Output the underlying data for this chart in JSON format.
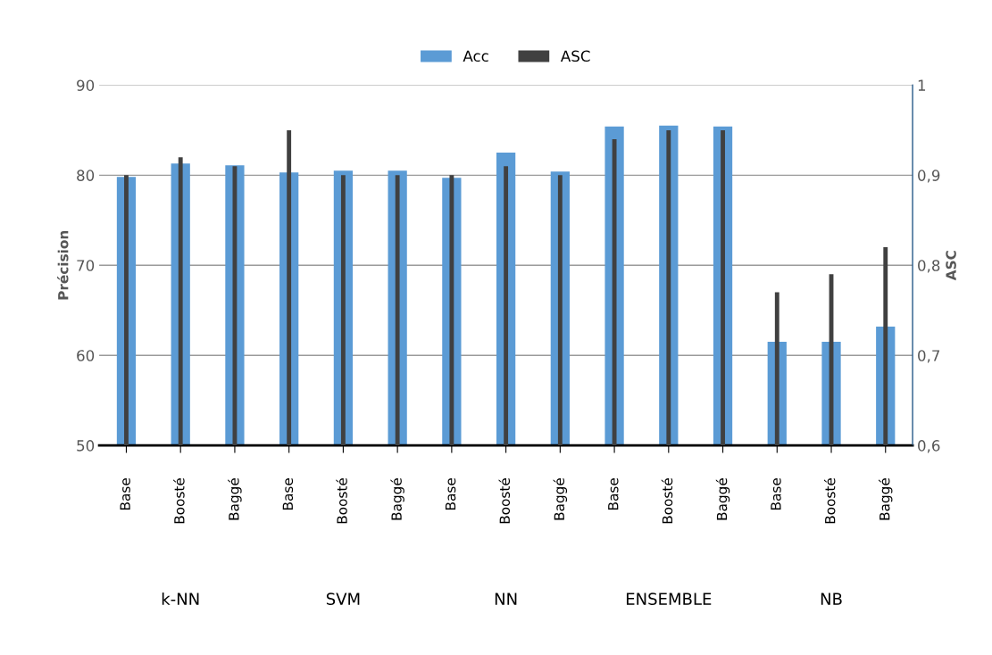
{
  "chart_data": {
    "type": "bar",
    "categories": [
      "Base",
      "Boosté",
      "Baggé",
      "Base",
      "Boosté",
      "Baggé",
      "Base",
      "Boosté",
      "Baggé",
      "Base",
      "Boosté",
      "Baggé",
      "Base",
      "Boosté",
      "Baggé"
    ],
    "series": [
      {
        "name": "Acc",
        "color": "#5b9bd5",
        "values": [
          79.8,
          81.3,
          81.1,
          80.3,
          80.5,
          80.5,
          79.7,
          82.5,
          80.4,
          85.4,
          85.5,
          85.4,
          61.5,
          61.5,
          63.2
        ]
      },
      {
        "name": "ASC",
        "color": "#404040",
        "axis": "y2",
        "values": [
          0.9,
          0.92,
          0.91,
          0.95,
          0.9,
          0.9,
          0.9,
          0.91,
          0.9,
          0.94,
          0.95,
          0.95,
          0.77,
          0.79,
          0.82
        ]
      }
    ],
    "ylabel": "Précision",
    "y2label": "ASC",
    "ylim": [
      50,
      90
    ],
    "yticks": [
      50,
      60,
      70,
      80,
      90
    ],
    "y2lim": [
      0.6,
      1
    ],
    "y2ticks": [
      {
        "value": 0.6,
        "label": "0,6"
      },
      {
        "value": 0.7,
        "label": "0,7"
      },
      {
        "value": 0.8,
        "label": "0,8"
      },
      {
        "value": 0.9,
        "label": "0,9"
      },
      {
        "value": 1,
        "label": "1"
      }
    ],
    "annotations": [
      "k-NN",
      "SVM",
      "NN",
      "ENSEMBLE",
      "NB"
    ],
    "grid": "y",
    "legend": "top"
  }
}
